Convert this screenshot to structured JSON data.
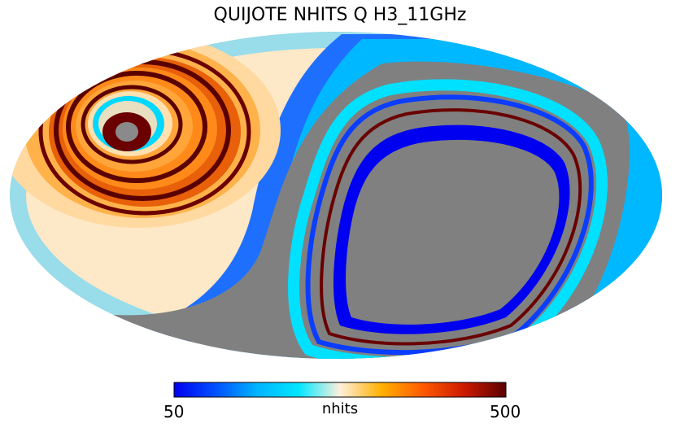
{
  "chart_data": {
    "type": "heatmap",
    "title": "QUIJOTE NHITS Q H3_11GHz",
    "projection": "mollweide",
    "colorbar": {
      "label": "nhits",
      "min": 50,
      "max": 500,
      "min_label": "50",
      "max_label": "500",
      "colormap": [
        "#0000f0",
        "#0050ff",
        "#00b4ff",
        "#00e6ff",
        "#fff0dc",
        "#ffb000",
        "#ff5a00",
        "#cc1a00",
        "#5a0000"
      ]
    },
    "masked_color": "#808080",
    "legend_placement": "bottom"
  }
}
